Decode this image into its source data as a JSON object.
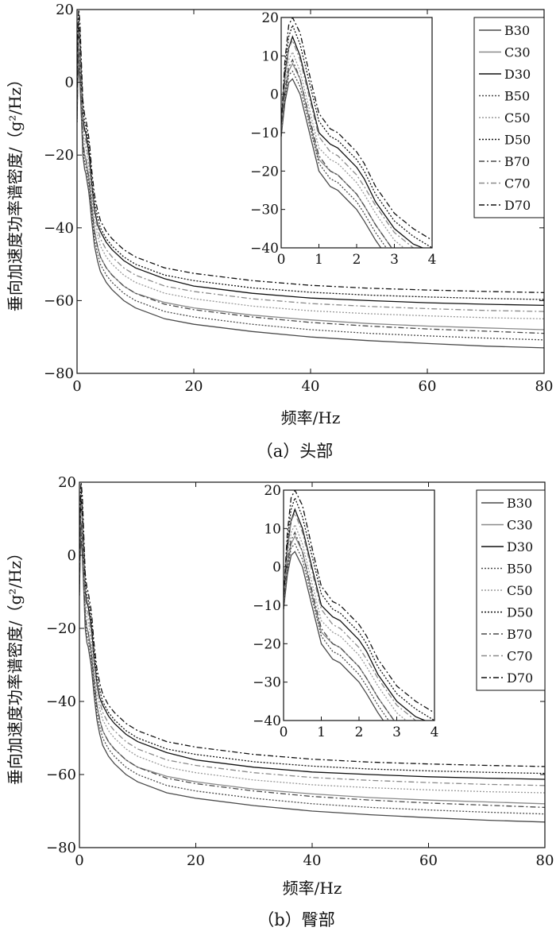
{
  "chart_data": [
    {
      "type": "line",
      "caption": "（a）头部",
      "xlabel": "频率/Hz",
      "ylabel": "垂向加速度功率谱密度/（g²/Hz）",
      "xlim": [
        0,
        80
      ],
      "ylim": [
        -80,
        20
      ],
      "xticks": [
        "0",
        "20",
        "40",
        "60",
        "80"
      ],
      "yticks": [
        "20",
        "0",
        "−20",
        "−40",
        "−60",
        "−80"
      ],
      "x": [
        0,
        0.1,
        0.2,
        0.3,
        0.5,
        0.8,
        1.0,
        1.3,
        1.5,
        1.8,
        2.0,
        2.2,
        2.5,
        3.0,
        3.5,
        4.0,
        5,
        6,
        8,
        10,
        15,
        20,
        30,
        40,
        50,
        60,
        70,
        80
      ],
      "series": [
        {
          "name": "B30",
          "values": [
            -11,
            -2,
            3,
            4,
            0,
            -12,
            -20,
            -24,
            -25,
            -28,
            -30,
            -33,
            -38,
            -45,
            -49,
            -52,
            -55,
            -57,
            -60,
            -62,
            -65,
            -66.5,
            -68.5,
            -70,
            -71,
            -71.8,
            -72.5,
            -73
          ]
        },
        {
          "name": "C30",
          "values": [
            -10,
            0,
            6,
            8,
            4,
            -9,
            -17,
            -20,
            -21,
            -24,
            -26,
            -29,
            -34,
            -41,
            -45,
            -48,
            -51,
            -53,
            -56,
            -58,
            -60.5,
            -62,
            -64,
            -65.3,
            -66.3,
            -67,
            -67.5,
            -68
          ]
        },
        {
          "name": "D30",
          "values": [
            -9,
            5,
            12,
            15,
            10,
            -2,
            -10,
            -13,
            -14,
            -17,
            -19,
            -22,
            -28,
            -35,
            -39,
            -41,
            -44,
            -46,
            -49,
            -51,
            -54,
            -56,
            -58,
            -59.3,
            -60,
            -60.6,
            -61,
            -61.3
          ]
        },
        {
          "name": "B50",
          "values": [
            -11,
            -1,
            5,
            6,
            2,
            -10,
            -18,
            -22,
            -23,
            -26,
            -28,
            -31,
            -36,
            -43,
            -47,
            -50,
            -53,
            -55,
            -58,
            -60,
            -63,
            -64.5,
            -66.5,
            -68,
            -69,
            -69.7,
            -70.3,
            -70.8
          ]
        },
        {
          "name": "C50",
          "values": [
            -10,
            2,
            9,
            11,
            6,
            -6,
            -14,
            -17,
            -18,
            -21,
            -23,
            -26,
            -31,
            -38,
            -42,
            -45,
            -48,
            -50,
            -53,
            -55,
            -58,
            -59.5,
            -61.5,
            -62.8,
            -63.6,
            -64.2,
            -64.7,
            -65
          ]
        },
        {
          "name": "D50",
          "values": [
            -9,
            7,
            15,
            18,
            13,
            1,
            -7,
            -11,
            -12,
            -15,
            -17,
            -20,
            -26,
            -33,
            -37,
            -40,
            -43,
            -45,
            -48,
            -50,
            -53,
            -54.5,
            -56.5,
            -57.7,
            -58.5,
            -59,
            -59.4,
            -59.7
          ]
        },
        {
          "name": "B70",
          "values": [
            -10,
            1,
            7,
            9,
            4,
            -8,
            -16,
            -20,
            -21,
            -24,
            -26,
            -29,
            -34,
            -41,
            -45,
            -48,
            -51,
            -53,
            -56,
            -58,
            -61,
            -62.5,
            -64.5,
            -66,
            -67,
            -67.8,
            -68.4,
            -69
          ]
        },
        {
          "name": "C70",
          "values": [
            -9,
            4,
            12,
            14,
            9,
            -3,
            -11,
            -15,
            -16,
            -19,
            -21,
            -24,
            -29,
            -36,
            -40,
            -43,
            -46,
            -48,
            -51,
            -53,
            -56,
            -57.5,
            -59.5,
            -60.8,
            -61.6,
            -62.2,
            -62.7,
            -63
          ]
        },
        {
          "name": "D70",
          "values": [
            -8,
            9,
            18,
            20,
            16,
            3,
            -5,
            -9,
            -10,
            -13,
            -15,
            -18,
            -24,
            -31,
            -35,
            -38,
            -41,
            -43,
            -46,
            -48,
            -51,
            -52.5,
            -54.5,
            -55.8,
            -56.6,
            -57.1,
            -57.5,
            -57.8
          ]
        }
      ],
      "inset": {
        "xlim": [
          0,
          4
        ],
        "ylim": [
          -40,
          20
        ],
        "xticks": [
          "0",
          "1",
          "2",
          "3",
          "4"
        ],
        "yticks": [
          "20",
          "10",
          "0",
          "−10",
          "−20",
          "−30",
          "−40"
        ]
      },
      "legend": "top-right",
      "grid": false
    },
    {
      "type": "line",
      "caption": "（b）臀部",
      "xlabel": "频率/Hz",
      "ylabel": "垂向加速度功率谱密度/（g²/Hz）",
      "xlim": [
        0,
        80
      ],
      "ylim": [
        -80,
        20
      ],
      "xticks": [
        "0",
        "20",
        "40",
        "60",
        "80"
      ],
      "yticks": [
        "20",
        "0",
        "−20",
        "−40",
        "−60",
        "−80"
      ],
      "x": [
        0,
        0.1,
        0.2,
        0.3,
        0.5,
        0.8,
        1.0,
        1.3,
        1.5,
        1.8,
        2.0,
        2.2,
        2.5,
        3.0,
        3.5,
        4.0,
        5,
        6,
        8,
        10,
        15,
        20,
        30,
        40,
        50,
        60,
        70,
        80
      ],
      "series": [
        {
          "name": "B30",
          "values": [
            -11,
            -2,
            3,
            4,
            0,
            -12,
            -20,
            -24,
            -25,
            -28,
            -30,
            -33,
            -38,
            -45,
            -49,
            -52,
            -55,
            -57,
            -60,
            -62,
            -65,
            -66.5,
            -68.5,
            -70,
            -71,
            -71.8,
            -72.5,
            -73
          ]
        },
        {
          "name": "C30",
          "values": [
            -10,
            0,
            6,
            8,
            4,
            -9,
            -17,
            -20,
            -21,
            -24,
            -26,
            -29,
            -34,
            -41,
            -45,
            -48,
            -51,
            -53,
            -56,
            -58,
            -60.5,
            -62,
            -64,
            -65.3,
            -66.3,
            -67,
            -67.5,
            -68
          ]
        },
        {
          "name": "D30",
          "values": [
            -9,
            5,
            12,
            15,
            10,
            -2,
            -10,
            -13,
            -14,
            -17,
            -19,
            -22,
            -28,
            -35,
            -39,
            -41,
            -44,
            -46,
            -49,
            -51,
            -54,
            -56,
            -58,
            -59.3,
            -60,
            -60.6,
            -61,
            -61.3
          ]
        },
        {
          "name": "B50",
          "values": [
            -11,
            -1,
            5,
            6,
            2,
            -10,
            -18,
            -22,
            -23,
            -26,
            -28,
            -31,
            -36,
            -43,
            -47,
            -50,
            -53,
            -55,
            -58,
            -60,
            -63,
            -64.5,
            -66.5,
            -68,
            -69,
            -69.7,
            -70.3,
            -70.8
          ]
        },
        {
          "name": "C50",
          "values": [
            -10,
            2,
            9,
            11,
            6,
            -6,
            -14,
            -17,
            -18,
            -21,
            -23,
            -26,
            -31,
            -38,
            -42,
            -45,
            -48,
            -50,
            -53,
            -55,
            -58,
            -59.5,
            -61.5,
            -62.8,
            -63.6,
            -64.2,
            -64.7,
            -65
          ]
        },
        {
          "name": "D50",
          "values": [
            -9,
            7,
            15,
            18,
            13,
            1,
            -7,
            -11,
            -12,
            -15,
            -17,
            -20,
            -26,
            -33,
            -37,
            -40,
            -43,
            -45,
            -48,
            -50,
            -53,
            -54.5,
            -56.5,
            -57.7,
            -58.5,
            -59,
            -59.4,
            -59.7
          ]
        },
        {
          "name": "B70",
          "values": [
            -10,
            1,
            7,
            9,
            4,
            -8,
            -16,
            -20,
            -21,
            -24,
            -26,
            -29,
            -34,
            -41,
            -45,
            -48,
            -51,
            -53,
            -56,
            -58,
            -61,
            -62.5,
            -64.5,
            -66,
            -67,
            -67.8,
            -68.4,
            -69
          ]
        },
        {
          "name": "C70",
          "values": [
            -9,
            4,
            12,
            14,
            9,
            -3,
            -11,
            -15,
            -16,
            -19,
            -21,
            -24,
            -29,
            -36,
            -40,
            -43,
            -46,
            -48,
            -51,
            -53,
            -56,
            -57.5,
            -59.5,
            -60.8,
            -61.6,
            -62.2,
            -62.7,
            -63
          ]
        },
        {
          "name": "D70",
          "values": [
            -8,
            9,
            18,
            20,
            16,
            3,
            -5,
            -9,
            -10,
            -13,
            -15,
            -18,
            -24,
            -31,
            -35,
            -38,
            -41,
            -43,
            -46,
            -48,
            -51,
            -52.5,
            -54.5,
            -55.8,
            -56.6,
            -57.1,
            -57.5,
            -57.8
          ]
        }
      ],
      "inset": {
        "xlim": [
          0,
          4
        ],
        "ylim": [
          -40,
          20
        ],
        "xticks": [
          "0",
          "1",
          "2",
          "3",
          "4"
        ],
        "yticks": [
          "20",
          "10",
          "0",
          "−10",
          "−20",
          "−30",
          "−40"
        ]
      },
      "legend": "top-right",
      "grid": false
    }
  ],
  "series_styles": {
    "B30": {
      "color": "#4a4a4a",
      "dash": ""
    },
    "C30": {
      "color": "#8a8a8a",
      "dash": ""
    },
    "D30": {
      "color": "#111111",
      "dash": ""
    },
    "B50": {
      "color": "#4a4a4a",
      "dash": "2,2"
    },
    "C50": {
      "color": "#9a9a9a",
      "dash": "2,2"
    },
    "D50": {
      "color": "#111111",
      "dash": "2,2"
    },
    "B70": {
      "color": "#4a4a4a",
      "dash": "7,3,2,3"
    },
    "C70": {
      "color": "#8a8a8a",
      "dash": "7,3,2,3"
    },
    "D70": {
      "color": "#111111",
      "dash": "7,3,2,3"
    }
  }
}
